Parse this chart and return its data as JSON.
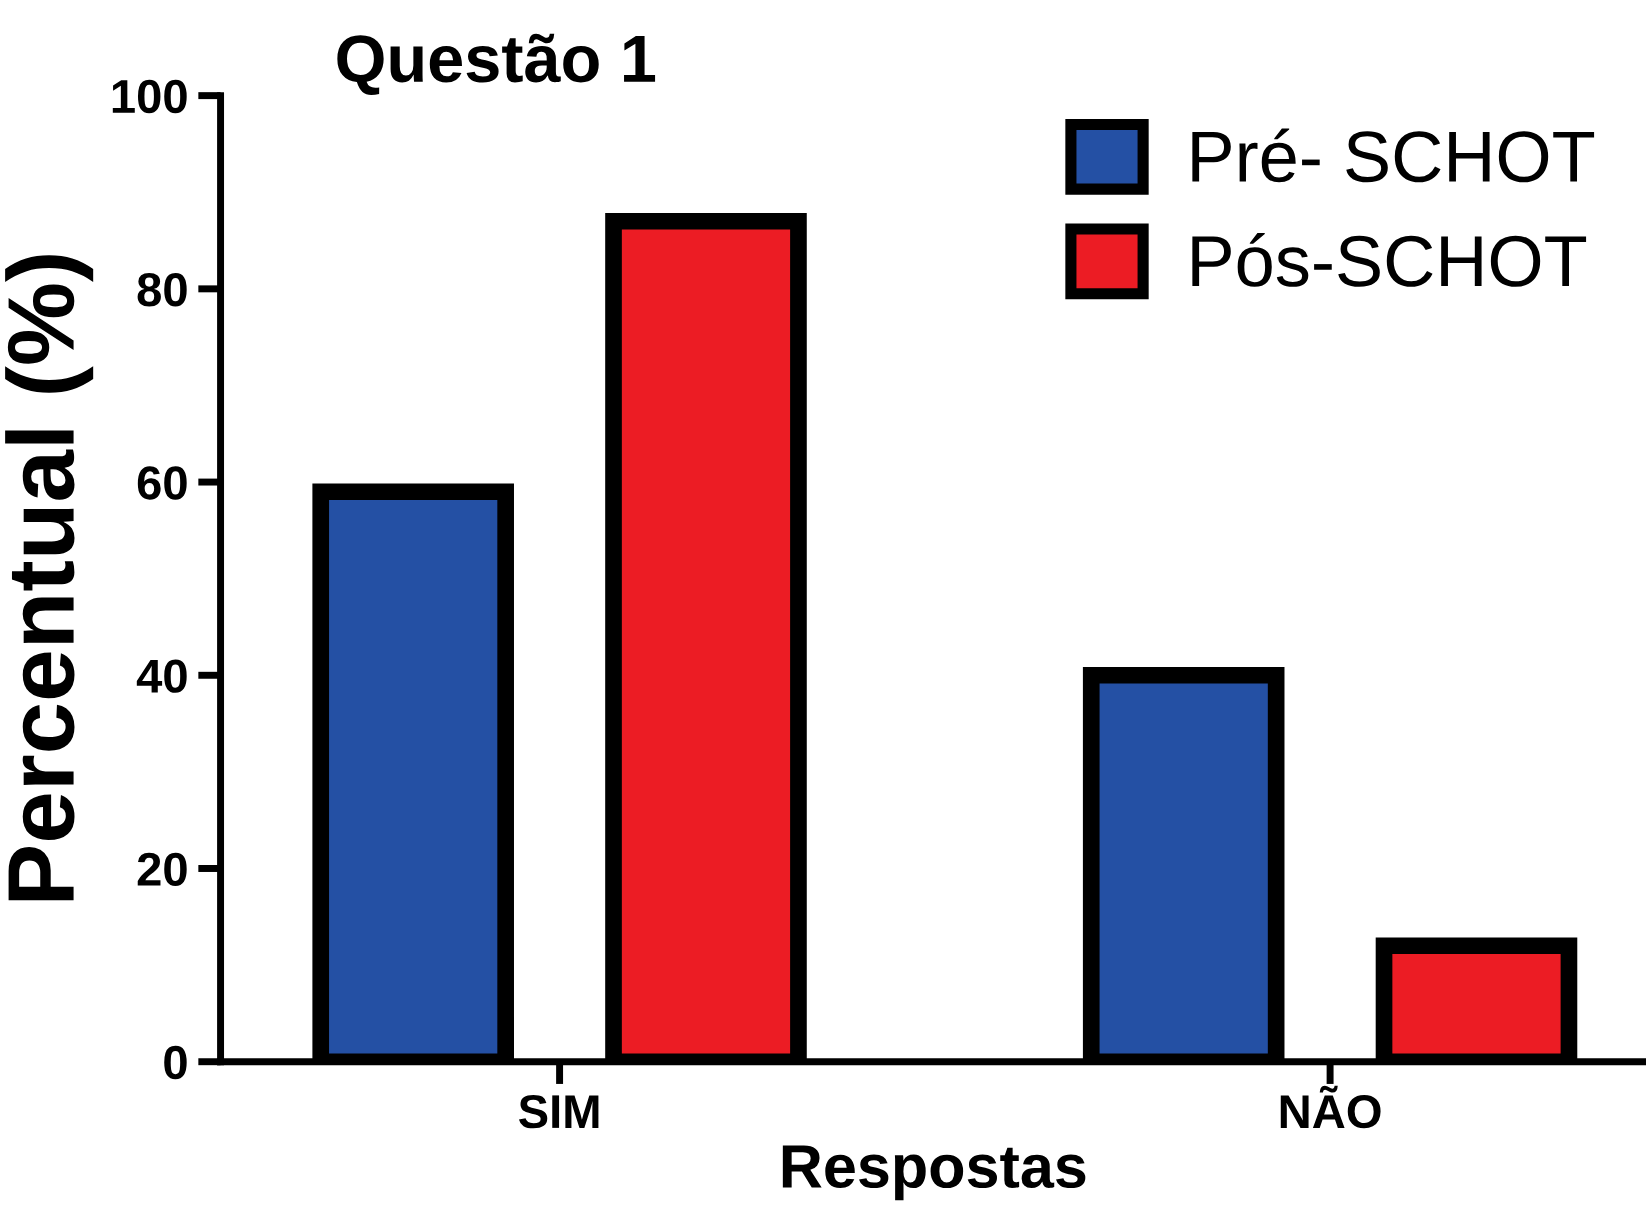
{
  "chart_data": {
    "type": "bar",
    "title": "Questão 1",
    "xlabel": "Respostas",
    "ylabel": "Percentual (%)",
    "categories": [
      "SIM",
      "NÃO"
    ],
    "series": [
      {
        "name": "Pré- SCHOT",
        "color": "#2450a4",
        "values": [
          59,
          40
        ]
      },
      {
        "name": "Pós-SCHOT",
        "color": "#ec1c24",
        "values": [
          87,
          12
        ]
      }
    ],
    "ylim": [
      0,
      100
    ],
    "yticks": [
      0,
      20,
      40,
      60,
      80,
      100
    ],
    "grid": false,
    "legend": "top right"
  }
}
